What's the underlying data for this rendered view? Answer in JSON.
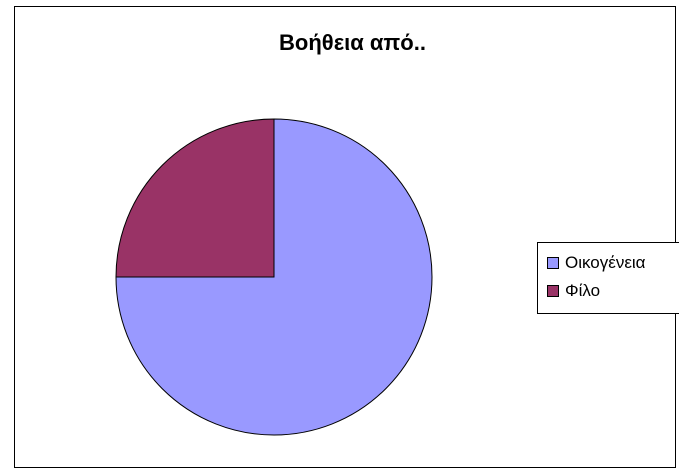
{
  "chart_data": {
    "type": "pie",
    "title": "Βοήθεια από..",
    "categories": [
      "Οικογένεια",
      "Φίλο"
    ],
    "values": [
      75,
      25
    ],
    "colors": [
      "#9999ff",
      "#993366"
    ],
    "start_angle_deg": 0,
    "direction": "clockwise",
    "legend_position": "right",
    "xlabel": "",
    "ylabel": ""
  }
}
